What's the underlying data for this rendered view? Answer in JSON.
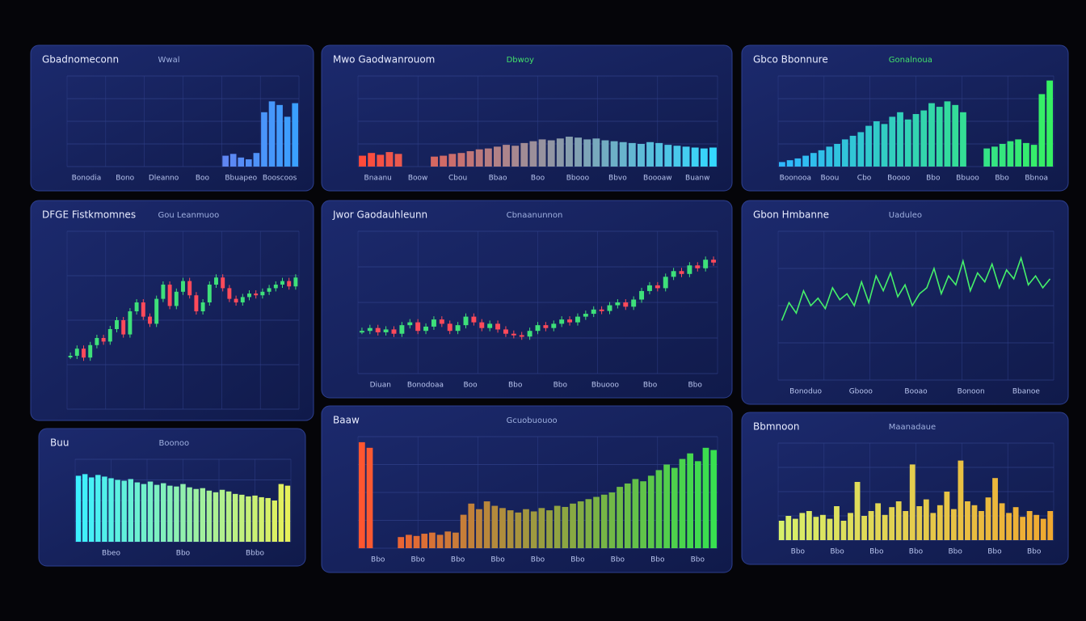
{
  "panels": [
    {
      "title": "Gbadnomeconn",
      "subtitle": "Wwal",
      "type": "bar",
      "colors": [
        "#b04dd8",
        "#3aa0ff"
      ],
      "ylim": [
        0,
        100
      ],
      "xlabels": [
        "Bonodia",
        "Bono",
        "Dleanno",
        "Boo",
        "Bbuapeo",
        "Booscoos"
      ],
      "values": [
        null,
        null,
        null,
        null,
        null,
        null,
        null,
        null,
        null,
        null,
        null,
        null,
        null,
        null,
        null,
        null,
        null,
        null,
        null,
        null,
        12,
        14,
        10,
        8,
        15,
        60,
        72,
        68,
        55,
        70
      ]
    },
    {
      "title": "Mwo Gaodwanrouom",
      "subtitle": "Dbwoy",
      "type": "bar",
      "colors": [
        "#ff4a3a",
        "#34d8ff"
      ],
      "ylim": [
        0,
        100
      ],
      "xlabels": [
        "Bnaanu",
        "Boow",
        "Cbou",
        "Bbao",
        "Boo",
        "Bbooo",
        "Bbvo",
        "Boooaw",
        "Buanw"
      ],
      "values": [
        12,
        15,
        13,
        16,
        14,
        null,
        null,
        null,
        11,
        12,
        14,
        15,
        17,
        19,
        20,
        22,
        24,
        23,
        26,
        28,
        30,
        29,
        31,
        33,
        32,
        30,
        31,
        29,
        28,
        27,
        26,
        25,
        27,
        26,
        24,
        23,
        22,
        21,
        20,
        21
      ]
    },
    {
      "title": "Gbco Bbonnure",
      "subtitle": "Gonalnoua",
      "type": "bar",
      "colors": [
        "#2fb7ff",
        "#36f062"
      ],
      "ylim": [
        0,
        100
      ],
      "xlabels": [
        "Boonooa",
        "Boou",
        "Cbo",
        "Boooo",
        "Bbo",
        "Bbuoo",
        "Bbo",
        "Bbnoa"
      ],
      "values": [
        5,
        7,
        9,
        12,
        15,
        18,
        22,
        25,
        30,
        34,
        38,
        45,
        50,
        47,
        55,
        60,
        52,
        58,
        62,
        70,
        66,
        72,
        68,
        60,
        null,
        null,
        20,
        22,
        25,
        28,
        30,
        26,
        24,
        80,
        95
      ]
    },
    {
      "title": "DFGE Fistkmomnes",
      "subtitle": "Gou Leanmuoo",
      "type": "candle",
      "ylim": [
        0,
        100
      ],
      "xlabels": [],
      "values": [
        30,
        34,
        29,
        36,
        40,
        38,
        45,
        50,
        42,
        55,
        60,
        52,
        48,
        62,
        70,
        58,
        66,
        72,
        64,
        55,
        60,
        70,
        74,
        68,
        62,
        60,
        63,
        65,
        64,
        66,
        68,
        70,
        72,
        69,
        74
      ]
    },
    {
      "title": "Jwor Gaodauhleunn",
      "subtitle": "Cbnaanunnon",
      "type": "candle",
      "ylim": [
        0,
        100
      ],
      "xlabels": [
        "Diuan",
        "Bonodoaa",
        "Boo",
        "Bbo",
        "Bbo",
        "Bbuooo",
        "Bbo",
        "Bbo"
      ],
      "values": [
        30,
        32,
        29,
        31,
        28,
        34,
        36,
        30,
        33,
        38,
        35,
        30,
        34,
        40,
        36,
        32,
        35,
        31,
        28,
        27,
        26,
        30,
        34,
        32,
        35,
        38,
        36,
        40,
        42,
        45,
        44,
        48,
        50,
        47,
        52,
        58,
        62,
        60,
        68,
        72,
        70,
        76,
        74,
        80,
        78
      ]
    },
    {
      "title": "Gbon Hmbanne",
      "subtitle": "Uaduleo",
      "type": "line",
      "color": "#45f06a",
      "ylim": [
        0,
        100
      ],
      "xlabels": [
        "Bonoduo",
        "Gbooo",
        "Booao",
        "Bonoon",
        "Bbanoe"
      ],
      "values": [
        40,
        52,
        45,
        60,
        50,
        55,
        48,
        62,
        54,
        58,
        50,
        66,
        52,
        70,
        60,
        72,
        56,
        64,
        50,
        58,
        62,
        75,
        58,
        70,
        64,
        80,
        60,
        72,
        66,
        78,
        62,
        74,
        68,
        82,
        64,
        70,
        62,
        68
      ]
    },
    {
      "title": "Buu",
      "subtitle": "Boonoo",
      "type": "bar",
      "colors": [
        "#3cf0ff",
        "#e6f05a"
      ],
      "ylim": [
        0,
        100
      ],
      "xlabels": [
        "Bbeo",
        "Bbo",
        "Bbbo"
      ],
      "values": [
        80,
        82,
        78,
        81,
        79,
        77,
        75,
        74,
        76,
        72,
        70,
        73,
        69,
        71,
        68,
        67,
        70,
        66,
        64,
        65,
        62,
        60,
        63,
        61,
        58,
        57,
        55,
        56,
        54,
        53,
        50,
        70,
        68
      ]
    },
    {
      "title": "Baaw",
      "subtitle": "Gcuobuouoo",
      "type": "bar",
      "colors": [
        "#ff5630",
        "#38e050"
      ],
      "ylim": [
        0,
        100
      ],
      "xlabels": [
        "Bbo",
        "Bbo",
        "Bbo",
        "Bbo",
        "Bbo",
        "Bbo",
        "Bbo",
        "Bbo",
        "Bbo"
      ],
      "values": [
        95,
        90,
        null,
        null,
        null,
        10,
        12,
        11,
        13,
        14,
        12,
        15,
        14,
        30,
        40,
        35,
        42,
        38,
        36,
        34,
        32,
        35,
        33,
        36,
        34,
        38,
        37,
        40,
        42,
        44,
        46,
        48,
        50,
        55,
        58,
        62,
        60,
        65,
        70,
        75,
        72,
        80,
        85,
        78,
        90,
        88
      ]
    },
    {
      "title": "Bbmnoon",
      "subtitle": "Maanadaue",
      "type": "bar",
      "colors": [
        "#d8f06a",
        "#f0a830"
      ],
      "ylim": [
        0,
        100
      ],
      "xlabels": [
        "Bbo",
        "Bbo",
        "Bbo",
        "Bbo",
        "Bbo",
        "Bbo",
        "Bbo"
      ],
      "values": [
        20,
        25,
        22,
        28,
        30,
        24,
        26,
        22,
        35,
        20,
        28,
        60,
        25,
        30,
        38,
        26,
        34,
        40,
        30,
        78,
        35,
        42,
        28,
        36,
        50,
        32,
        82,
        40,
        36,
        30,
        44,
        64,
        38,
        28,
        34,
        24,
        30,
        26,
        22,
        30
      ]
    }
  ]
}
